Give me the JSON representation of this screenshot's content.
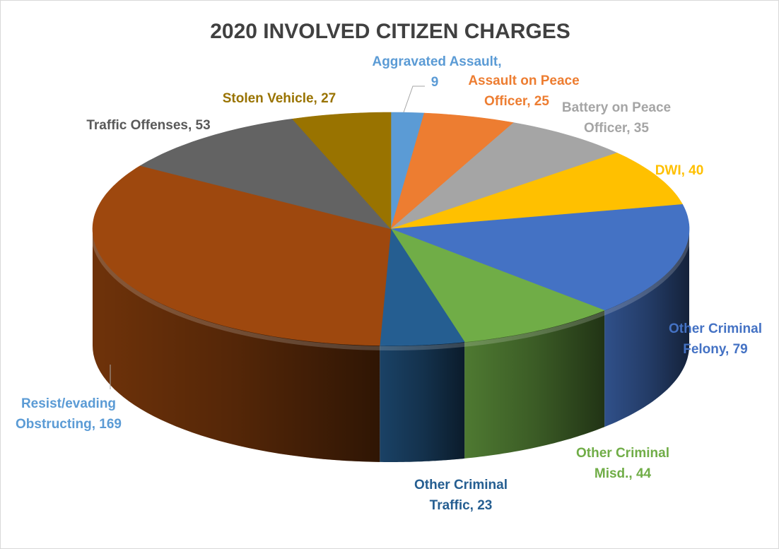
{
  "chart_data": {
    "type": "pie",
    "title": "2020 INVOLVED CITIZEN CHARGES",
    "slices": [
      {
        "label": "Aggravated Assault, 9",
        "value": 9,
        "color": "#5b9bd5",
        "label_color": "#5b9bd5"
      },
      {
        "label": "Assault on Peace Officer, 25",
        "value": 25,
        "color": "#ed7d31",
        "label_color": "#ed7d31"
      },
      {
        "label": "Battery on Peace Officer, 35",
        "value": 35,
        "color": "#a5a5a5",
        "label_color": "#a5a5a5"
      },
      {
        "label": "DWI, 40",
        "value": 40,
        "color": "#ffc000",
        "label_color": "#ffc000"
      },
      {
        "label": "Other Criminal Felony, 79",
        "value": 79,
        "color": "#4472c4",
        "label_color": "#4472c4"
      },
      {
        "label": "Other Criminal Misd., 44",
        "value": 44,
        "color": "#70ad47",
        "label_color": "#70ad47"
      },
      {
        "label": "Other Criminal Traffic, 23",
        "value": 23,
        "color": "#255e91",
        "label_color": "#255e91"
      },
      {
        "label": "Resist/evading Obstructing, 169",
        "value": 169,
        "color": "#9e480e",
        "label_color": "#5b9bd5"
      },
      {
        "label": "Traffic Offenses, 53",
        "value": 53,
        "color": "#636363",
        "label_color": "#595959"
      },
      {
        "label": "Stolen Vehicle, 27",
        "value": 27,
        "color": "#997300",
        "label_color": "#997300"
      }
    ],
    "start_angle": "12 o'clock",
    "direction": "clockwise",
    "style": "3d-tilted",
    "legend": "none",
    "title_color": "#404040"
  }
}
